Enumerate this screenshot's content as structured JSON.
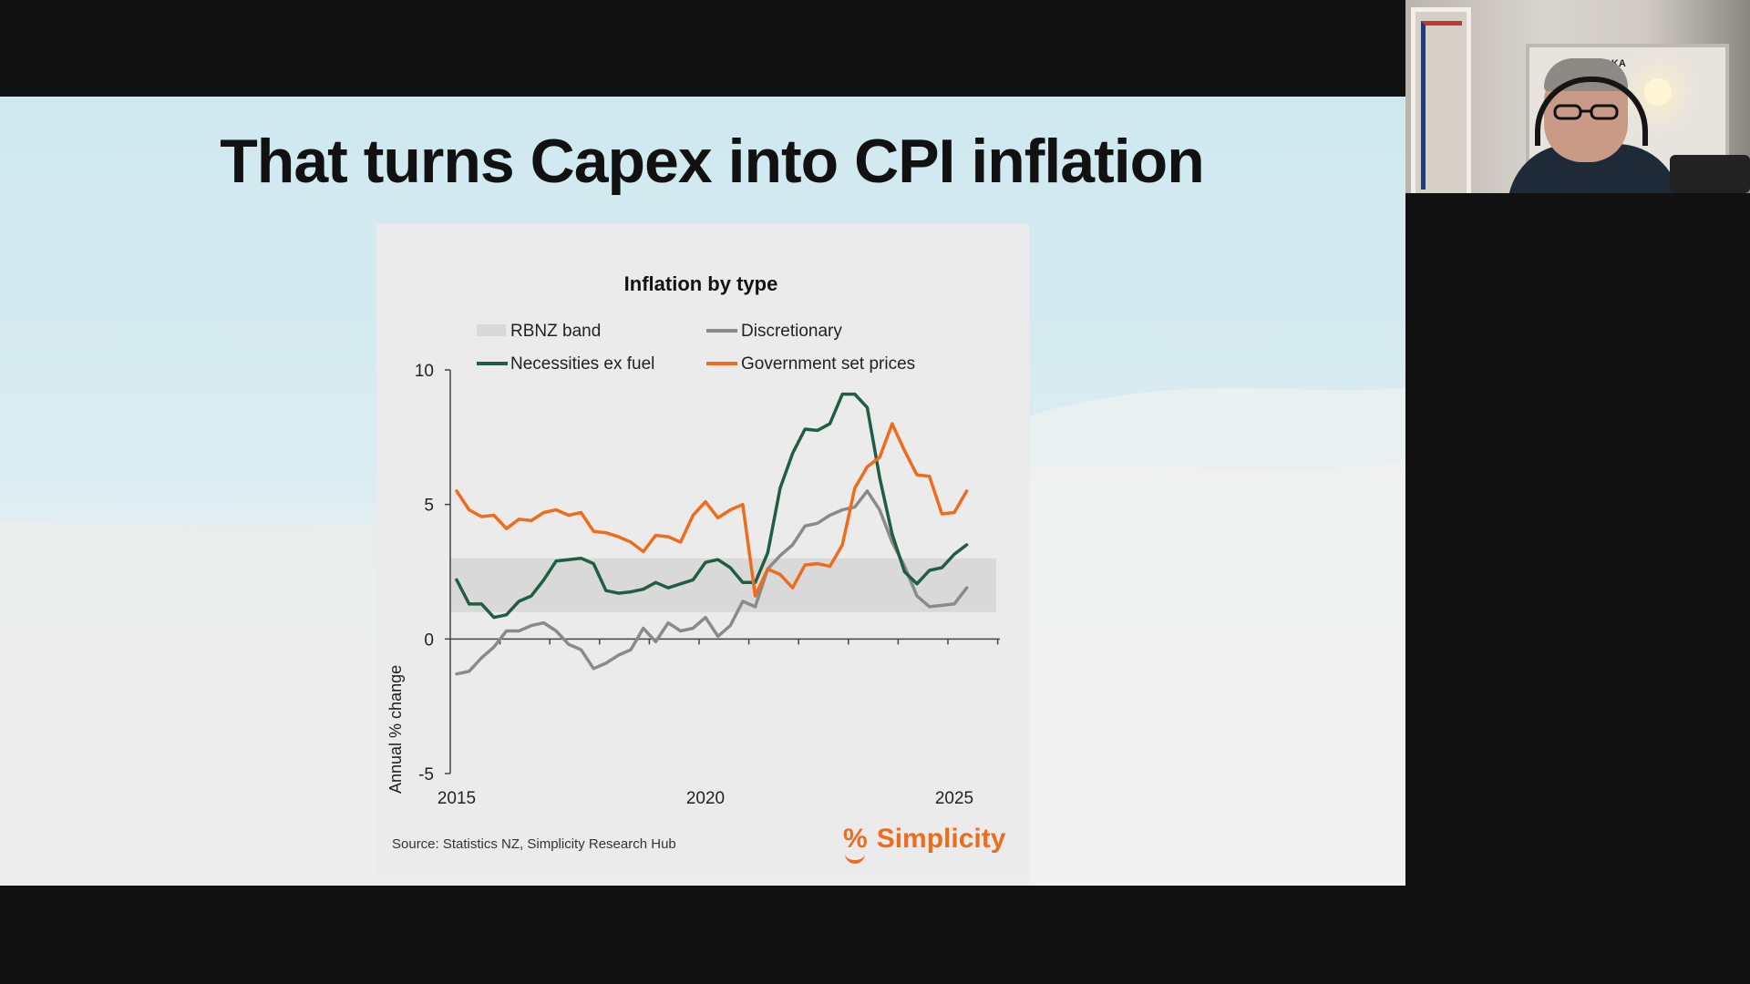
{
  "slide": {
    "title": "That turns Capex into CPI inflation"
  },
  "chart_data": {
    "type": "line",
    "title": "Inflation by type",
    "ylabel": "Annual % change",
    "xlabel": "",
    "xlim": [
      2015,
      2026
    ],
    "ylim": [
      -5,
      10
    ],
    "x_ticks": [
      "2015",
      "2020",
      "2025"
    ],
    "y_ticks": [
      "10",
      "5",
      "0",
      "-5"
    ],
    "band": {
      "name": "RBNZ band",
      "range": [
        1,
        3
      ],
      "color": "#d9d9d9"
    },
    "legend": [
      "RBNZ band",
      "Discretionary",
      "Necessities ex fuel",
      "Government set prices"
    ],
    "series": [
      {
        "name": "Discretionary",
        "color": "#8a8a8a",
        "x": [
          2015.0,
          2015.25,
          2015.5,
          2015.75,
          2016.0,
          2016.25,
          2016.5,
          2016.75,
          2017.0,
          2017.25,
          2017.5,
          2017.75,
          2018.0,
          2018.25,
          2018.5,
          2018.75,
          2019.0,
          2019.25,
          2019.5,
          2019.75,
          2020.0,
          2020.25,
          2020.5,
          2020.75,
          2021.0,
          2021.25,
          2021.5,
          2021.75,
          2022.0,
          2022.25,
          2022.5,
          2022.75,
          2023.0,
          2023.25,
          2023.5,
          2023.75,
          2024.0,
          2024.25,
          2024.5,
          2024.75,
          2025.0,
          2025.25
        ],
        "values": [
          -1.3,
          -1.2,
          -0.7,
          -0.3,
          0.3,
          0.3,
          0.5,
          0.6,
          0.3,
          -0.2,
          -0.4,
          -1.1,
          -0.9,
          -0.6,
          -0.4,
          0.4,
          -0.1,
          0.6,
          0.3,
          0.4,
          0.8,
          0.1,
          0.5,
          1.4,
          1.2,
          2.6,
          3.1,
          3.5,
          4.2,
          4.3,
          4.6,
          4.8,
          4.9,
          5.5,
          4.8,
          3.6,
          2.7,
          1.6,
          1.2,
          1.25,
          1.3,
          1.9
        ]
      },
      {
        "name": "Necessities ex fuel",
        "color": "#1f5e45",
        "x": [
          2015.0,
          2015.25,
          2015.5,
          2015.75,
          2016.0,
          2016.25,
          2016.5,
          2016.75,
          2017.0,
          2017.25,
          2017.5,
          2017.75,
          2018.0,
          2018.25,
          2018.5,
          2018.75,
          2019.0,
          2019.25,
          2019.5,
          2019.75,
          2020.0,
          2020.25,
          2020.5,
          2020.75,
          2021.0,
          2021.25,
          2021.5,
          2021.75,
          2022.0,
          2022.25,
          2022.5,
          2022.75,
          2023.0,
          2023.25,
          2023.5,
          2023.75,
          2024.0,
          2024.25,
          2024.5,
          2024.75,
          2025.0,
          2025.25
        ],
        "values": [
          2.2,
          1.3,
          1.3,
          0.8,
          0.9,
          1.4,
          1.6,
          2.2,
          2.9,
          2.95,
          3.0,
          2.8,
          1.8,
          1.7,
          1.75,
          1.85,
          2.1,
          1.9,
          2.05,
          2.2,
          2.85,
          2.95,
          2.65,
          2.1,
          2.1,
          3.2,
          5.6,
          6.9,
          7.8,
          7.75,
          8.0,
          9.1,
          9.1,
          8.6,
          6.0,
          3.9,
          2.5,
          2.05,
          2.55,
          2.65,
          3.15,
          3.5
        ]
      },
      {
        "name": "Government set prices",
        "color": "#ee6c1c",
        "x": [
          2015.0,
          2015.25,
          2015.5,
          2015.75,
          2016.0,
          2016.25,
          2016.5,
          2016.75,
          2017.0,
          2017.25,
          2017.5,
          2017.75,
          2018.0,
          2018.25,
          2018.5,
          2018.75,
          2019.0,
          2019.25,
          2019.5,
          2019.75,
          2020.0,
          2020.25,
          2020.5,
          2020.75,
          2021.0,
          2021.25,
          2021.5,
          2021.75,
          2022.0,
          2022.25,
          2022.5,
          2022.75,
          2023.0,
          2023.25,
          2023.5,
          2023.75,
          2024.0,
          2024.25,
          2024.5,
          2024.75,
          2025.0,
          2025.25
        ],
        "values": [
          5.5,
          4.8,
          4.55,
          4.6,
          4.1,
          4.45,
          4.4,
          4.7,
          4.8,
          4.6,
          4.7,
          4.0,
          3.95,
          3.8,
          3.6,
          3.25,
          3.85,
          3.8,
          3.6,
          4.6,
          5.1,
          4.5,
          4.8,
          5.0,
          1.6,
          2.6,
          2.4,
          1.9,
          2.75,
          2.8,
          2.7,
          3.5,
          5.6,
          6.4,
          6.75,
          8.0,
          7.0,
          6.1,
          6.05,
          4.65,
          4.7,
          5.5
        ]
      }
    ],
    "source": "Source: Statistics NZ, Simplicity Research Hub",
    "brand": {
      "symbol": "%",
      "name": "Simplicity",
      "color": "#ee6c1c"
    }
  },
  "webcam": {
    "sign_text": "KAKA"
  }
}
